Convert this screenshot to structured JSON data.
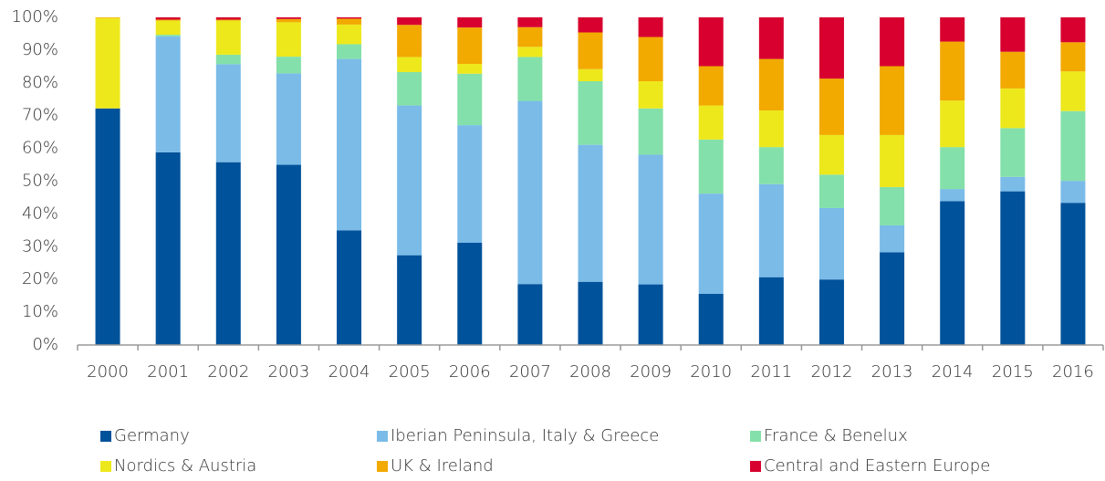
{
  "chart_data": {
    "type": "stacked_bar",
    "categories": [
      "2000",
      "2001",
      "2002",
      "2003",
      "2004",
      "2005",
      "2006",
      "2007",
      "2008",
      "2009",
      "2010",
      "2011",
      "2012",
      "2013",
      "2014",
      "2015",
      "2016"
    ],
    "series": [
      {
        "name": "Germany",
        "color": "#00529b",
        "values": [
          72.2,
          58.8,
          55.8,
          55,
          35,
          27.4,
          31.2,
          18.6,
          19.3,
          18.5,
          15.6,
          20.7,
          20,
          28.3,
          43.9,
          46.9,
          43.4
        ]
      },
      {
        "name": "Iberian Peninsula, Italy & Greece",
        "color": "#7abbe8",
        "values": [
          0,
          35.4,
          29.9,
          27.9,
          52.3,
          45.7,
          35.9,
          55.9,
          41.8,
          39.6,
          30.6,
          28.4,
          21.8,
          8.2,
          3.7,
          4.4,
          6.7
        ]
      },
      {
        "name": "France & Benelux",
        "color": "#84e0aa",
        "values": [
          0,
          0.5,
          2.9,
          5.1,
          4.5,
          10.2,
          15.7,
          13.4,
          19.4,
          14.1,
          16.5,
          11.3,
          10.2,
          11.7,
          12.8,
          14.9,
          21.3
        ]
      },
      {
        "name": "Nordics & Austria",
        "color": "#ede81c",
        "values": [
          27.6,
          4.3,
          10.4,
          10.5,
          6,
          4.6,
          3,
          3.1,
          3.7,
          8.3,
          10.4,
          11.2,
          12.1,
          15.9,
          14.2,
          12.1,
          12.1
        ]
      },
      {
        "name": "UK & Ireland",
        "color": "#f2a900",
        "values": [
          0.2,
          0.3,
          0.3,
          1,
          1.8,
          9.8,
          11.1,
          6,
          11.2,
          13.5,
          12,
          15.7,
          17.2,
          21,
          18,
          11.2,
          8.9
        ]
      },
      {
        "name": "Central and Eastern Europe",
        "color": "#d7002f",
        "values": [
          0,
          0.7,
          0.7,
          0.5,
          0.4,
          2.3,
          3.1,
          3,
          4.6,
          6,
          14.9,
          12.7,
          18.7,
          14.9,
          7.4,
          10.5,
          7.6
        ]
      }
    ],
    "ylim": [
      0,
      100
    ],
    "yticks": [
      {
        "value": 0,
        "label": "0%"
      },
      {
        "value": 10,
        "label": "10%"
      },
      {
        "value": 20,
        "label": "20%"
      },
      {
        "value": 30,
        "label": "30%"
      },
      {
        "value": 40,
        "label": "40%"
      },
      {
        "value": 50,
        "label": "50%"
      },
      {
        "value": 60,
        "label": "60%"
      },
      {
        "value": 70,
        "label": "70%"
      },
      {
        "value": 80,
        "label": "80%"
      },
      {
        "value": 90,
        "label": "90%"
      },
      {
        "value": 100,
        "label": "100%"
      }
    ],
    "grid": false,
    "legend": "bottom"
  }
}
